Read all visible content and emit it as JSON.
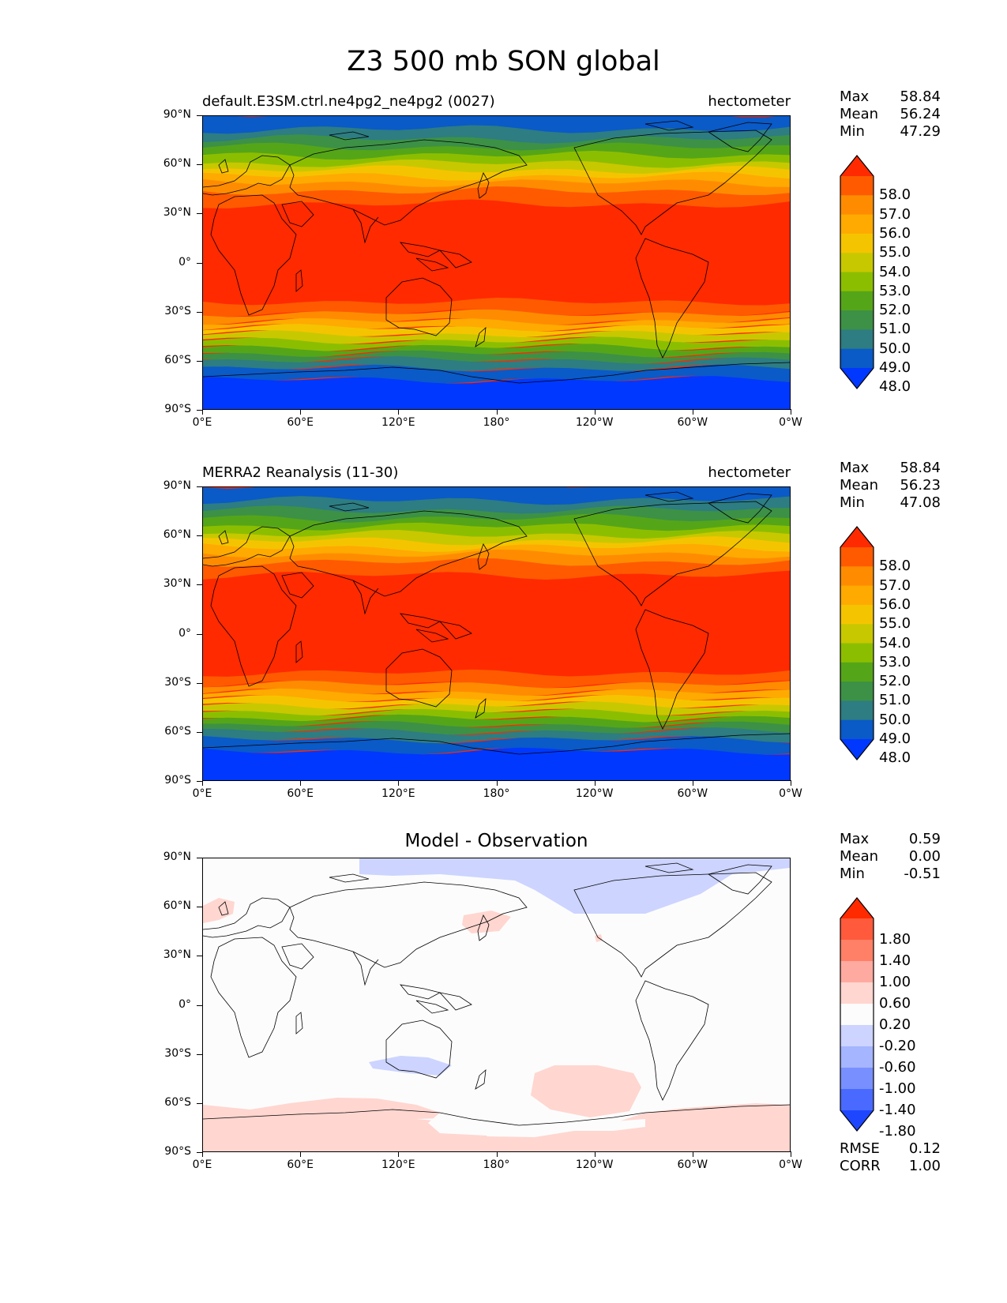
{
  "figure_title": "Z3 500 mb SON global",
  "lat_ticks": [
    "90°N",
    "60°N",
    "30°N",
    "0°",
    "30°S",
    "60°S",
    "90°S"
  ],
  "lon_ticks": [
    "0°E",
    "60°E",
    "120°E",
    "180°",
    "120°W",
    "60°W",
    "0°W"
  ],
  "panels": [
    {
      "title_left": "default.E3SM.ctrl.ne4pg2_ne4pg2 (0027)",
      "title_right": "hectometer",
      "stats": {
        "max_label": "Max",
        "max": "58.84",
        "mean_label": "Mean",
        "mean": "56.24",
        "min_label": "Min",
        "min": "47.29"
      },
      "colorbar_labels": [
        "58.0",
        "57.0",
        "56.0",
        "55.0",
        "54.0",
        "53.0",
        "52.0",
        "51.0",
        "50.0",
        "49.0",
        "48.0"
      ]
    },
    {
      "title_left": "MERRA2 Reanalysis (11-30)",
      "title_right": "hectometer",
      "stats": {
        "max_label": "Max",
        "max": "58.84",
        "mean_label": "Mean",
        "mean": "56.23",
        "min_label": "Min",
        "min": "47.08"
      },
      "colorbar_labels": [
        "58.0",
        "57.0",
        "56.0",
        "55.0",
        "54.0",
        "53.0",
        "52.0",
        "51.0",
        "50.0",
        "49.0",
        "48.0"
      ]
    },
    {
      "title_center": "Model - Observation",
      "stats": {
        "max_label": "Max",
        "max": "0.59",
        "mean_label": "Mean",
        "mean": "0.00",
        "min_label": "Min",
        "min": "-0.51"
      },
      "colorbar_labels": [
        "1.80",
        "1.40",
        "1.00",
        "0.60",
        "0.20",
        "-0.20",
        "-0.60",
        "-1.00",
        "-1.40",
        "-1.80"
      ],
      "metrics": {
        "rmse_label": "RMSE",
        "rmse": "0.12",
        "corr_label": "CORR",
        "corr": "1.00"
      }
    }
  ],
  "colors": {
    "field_top_to_bottom": [
      "#ff2a00",
      "#ff5a00",
      "#ff8c00",
      "#ffaa00",
      "#f5c400",
      "#c8c800",
      "#8cbe00",
      "#55a519",
      "#3c9146",
      "#2d7d82",
      "#0a5ac8",
      "#0038ff"
    ],
    "diff_top_to_bottom": [
      "#ff2a00",
      "#ff5a3c",
      "#ff8066",
      "#ffaaa0",
      "#ffd6d0",
      "#fcfcfc",
      "#ccd4ff",
      "#a5b5ff",
      "#7890ff",
      "#4a6aff",
      "#1e46ff"
    ],
    "coastline": "#000000"
  },
  "chart_data": {
    "type": "map",
    "variable": "Z3 500 mb",
    "season": "SON",
    "units": "hectometer",
    "panels": [
      {
        "name": "default.E3SM.ctrl.ne4pg2_ne4pg2 (0027)",
        "max": 58.84,
        "mean": 56.24,
        "min": 47.29,
        "levels": [
          48,
          49,
          50,
          51,
          52,
          53,
          54,
          55,
          56,
          57,
          58
        ]
      },
      {
        "name": "MERRA2 Reanalysis (11-30)",
        "max": 58.84,
        "mean": 56.23,
        "min": 47.08,
        "levels": [
          48,
          49,
          50,
          51,
          52,
          53,
          54,
          55,
          56,
          57,
          58
        ]
      },
      {
        "name": "Model - Observation",
        "max": 0.59,
        "mean": 0.0,
        "min": -0.51,
        "rmse": 0.12,
        "corr": 1.0,
        "levels": [
          -1.8,
          -1.4,
          -1.0,
          -0.6,
          -0.2,
          0.2,
          0.6,
          1.0,
          1.4,
          1.8
        ]
      }
    ],
    "xlim": [
      0,
      360
    ],
    "ylim": [
      -90,
      90
    ]
  }
}
